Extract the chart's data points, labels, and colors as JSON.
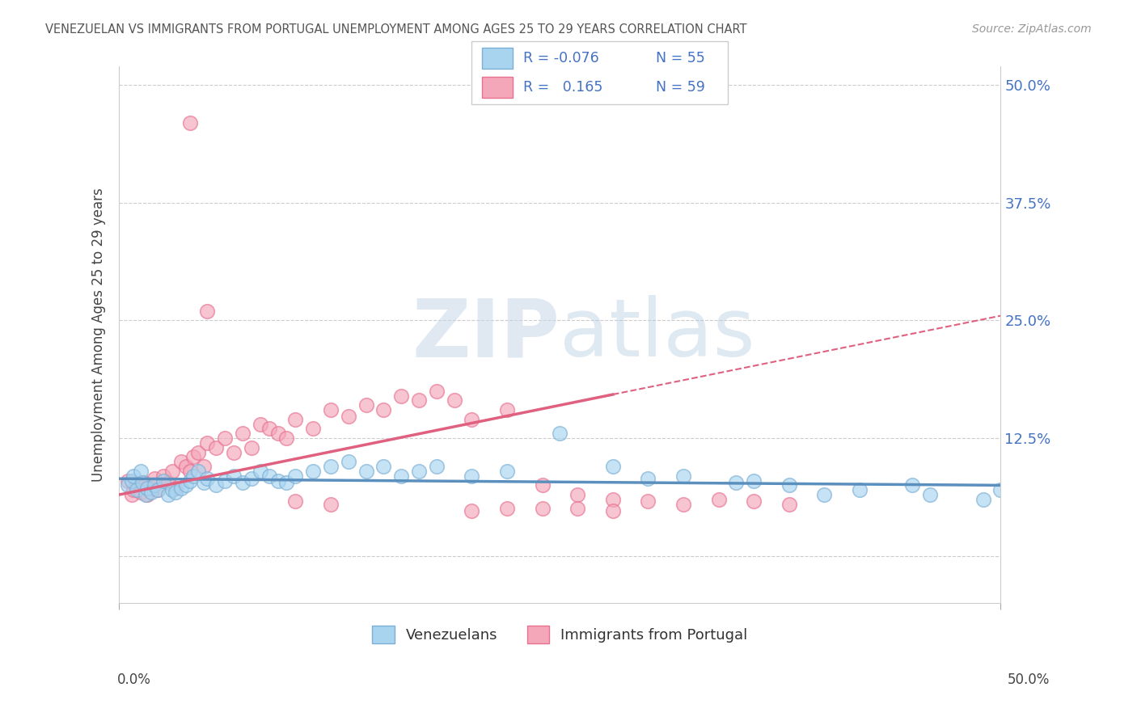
{
  "title": "VENEZUELAN VS IMMIGRANTS FROM PORTUGAL UNEMPLOYMENT AMONG AGES 25 TO 29 YEARS CORRELATION CHART",
  "source": "Source: ZipAtlas.com",
  "ylabel": "Unemployment Among Ages 25 to 29 years",
  "xlim": [
    0.0,
    0.5
  ],
  "ylim": [
    -0.05,
    0.52
  ],
  "yticks": [
    0.0,
    0.125,
    0.25,
    0.375,
    0.5
  ],
  "color_venezuelan": "#A8D4F0",
  "color_portugal": "#F4A7B9",
  "color_venezuelan_edge": "#7BAFD4",
  "color_portugal_edge": "#E87090",
  "color_ven_line": "#5B8FBE",
  "color_port_line": "#E06080",
  "watermark_zip": "ZIP",
  "watermark_atlas": "atlas",
  "legend_r1": "R = -0.076",
  "legend_n1": "N = 55",
  "legend_r2": "R =  0.165",
  "legend_n2": "N = 59",
  "ven_x": [
    0.005,
    0.007,
    0.008,
    0.01,
    0.012,
    0.013,
    0.015,
    0.016,
    0.018,
    0.02,
    0.022,
    0.025,
    0.028,
    0.03,
    0.032,
    0.035,
    0.038,
    0.04,
    0.042,
    0.045,
    0.048,
    0.05,
    0.055,
    0.06,
    0.065,
    0.07,
    0.075,
    0.08,
    0.085,
    0.09,
    0.095,
    0.1,
    0.11,
    0.12,
    0.13,
    0.14,
    0.15,
    0.16,
    0.17,
    0.18,
    0.2,
    0.22,
    0.25,
    0.28,
    0.3,
    0.32,
    0.35,
    0.36,
    0.38,
    0.4,
    0.42,
    0.45,
    0.46,
    0.49,
    0.5
  ],
  "ven_y": [
    0.075,
    0.08,
    0.085,
    0.07,
    0.09,
    0.078,
    0.065,
    0.072,
    0.068,
    0.075,
    0.07,
    0.08,
    0.065,
    0.07,
    0.068,
    0.072,
    0.075,
    0.08,
    0.085,
    0.09,
    0.078,
    0.082,
    0.075,
    0.08,
    0.085,
    0.078,
    0.082,
    0.09,
    0.085,
    0.08,
    0.078,
    0.085,
    0.09,
    0.095,
    0.1,
    0.09,
    0.095,
    0.085,
    0.09,
    0.095,
    0.085,
    0.09,
    0.13,
    0.095,
    0.082,
    0.085,
    0.078,
    0.08,
    0.075,
    0.065,
    0.07,
    0.075,
    0.065,
    0.06,
    0.07
  ],
  "port_x": [
    0.005,
    0.007,
    0.008,
    0.01,
    0.012,
    0.014,
    0.016,
    0.018,
    0.02,
    0.022,
    0.025,
    0.028,
    0.03,
    0.032,
    0.035,
    0.038,
    0.04,
    0.042,
    0.045,
    0.048,
    0.05,
    0.055,
    0.06,
    0.065,
    0.07,
    0.075,
    0.08,
    0.085,
    0.09,
    0.095,
    0.1,
    0.11,
    0.12,
    0.13,
    0.14,
    0.15,
    0.16,
    0.17,
    0.18,
    0.19,
    0.2,
    0.22,
    0.24,
    0.26,
    0.28,
    0.3,
    0.32,
    0.34,
    0.36,
    0.38,
    0.2,
    0.22,
    0.24,
    0.26,
    0.28,
    0.1,
    0.12,
    0.04,
    0.05
  ],
  "port_y": [
    0.08,
    0.065,
    0.07,
    0.075,
    0.068,
    0.078,
    0.065,
    0.072,
    0.082,
    0.07,
    0.085,
    0.078,
    0.09,
    0.072,
    0.1,
    0.095,
    0.09,
    0.105,
    0.11,
    0.095,
    0.12,
    0.115,
    0.125,
    0.11,
    0.13,
    0.115,
    0.14,
    0.135,
    0.13,
    0.125,
    0.145,
    0.135,
    0.155,
    0.148,
    0.16,
    0.155,
    0.17,
    0.165,
    0.175,
    0.165,
    0.145,
    0.155,
    0.075,
    0.065,
    0.06,
    0.058,
    0.055,
    0.06,
    0.058,
    0.055,
    0.048,
    0.05,
    0.05,
    0.05,
    0.048,
    0.058,
    0.055,
    0.46,
    0.26
  ],
  "ven_trend_x": [
    0.0,
    0.5
  ],
  "ven_trend_y": [
    0.082,
    0.075
  ],
  "port_trend_x": [
    0.0,
    0.5
  ],
  "port_trend_y": [
    0.065,
    0.255
  ]
}
